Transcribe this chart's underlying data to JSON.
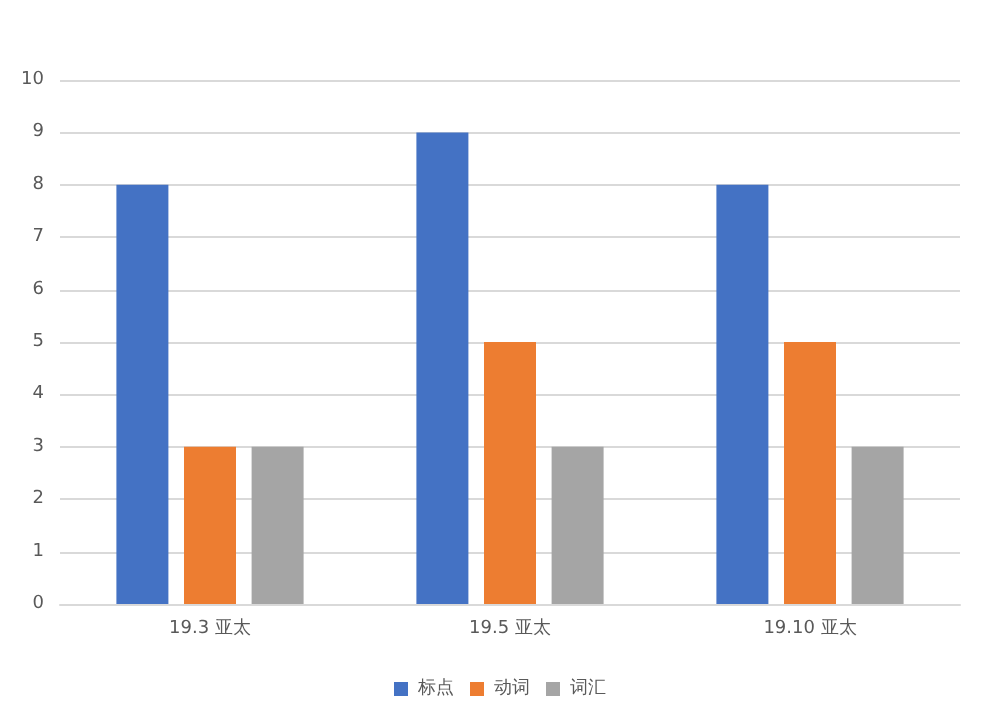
{
  "chart_data": {
    "type": "bar",
    "categories": [
      "19.3 亚太",
      "19.5 亚太",
      "19.10 亚太"
    ],
    "series": [
      {
        "name": "标点",
        "color": "#4472c4",
        "values": [
          8,
          9,
          8
        ]
      },
      {
        "name": "动词",
        "color": "#ed7d31",
        "values": [
          3,
          5,
          5
        ]
      },
      {
        "name": "词汇",
        "color": "#a5a5a5",
        "values": [
          3,
          3,
          3
        ]
      }
    ],
    "ylim": [
      0,
      10
    ],
    "yticks": [
      0,
      1,
      2,
      3,
      4,
      5,
      6,
      7,
      8,
      9,
      10
    ],
    "grid": "y",
    "legend": "bottom"
  }
}
